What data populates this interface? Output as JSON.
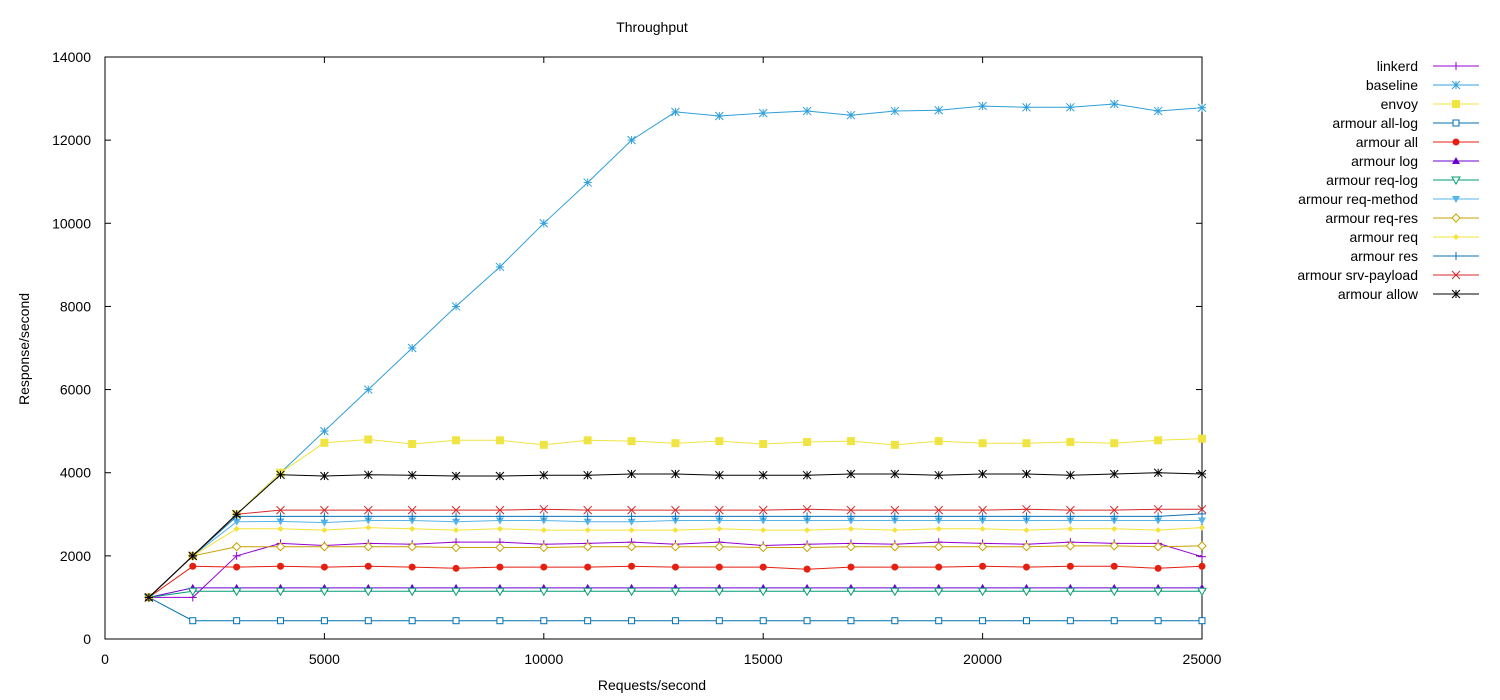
{
  "chart_data": {
    "type": "line",
    "title": "Throughput",
    "xlabel": "Requests/second",
    "ylabel": "Response/second",
    "xlim": [
      0,
      25000
    ],
    "ylim": [
      0,
      14000
    ],
    "xticks": [
      0,
      5000,
      10000,
      15000,
      20000,
      25000
    ],
    "yticks": [
      0,
      2000,
      4000,
      6000,
      8000,
      10000,
      12000,
      14000
    ],
    "grid": false,
    "legend_position": "outside-right",
    "x": [
      1000,
      2000,
      3000,
      4000,
      5000,
      6000,
      7000,
      8000,
      9000,
      10000,
      11000,
      12000,
      13000,
      14000,
      15000,
      16000,
      17000,
      18000,
      19000,
      20000,
      21000,
      22000,
      23000,
      24000,
      25000
    ],
    "series": [
      {
        "name": "linkerd",
        "color": "#9400d3",
        "marker": "plus",
        "values": [
          1000,
          1000,
          2000,
          2300,
          2250,
          2300,
          2280,
          2330,
          2330,
          2280,
          2300,
          2330,
          2280,
          2330,
          2250,
          2280,
          2300,
          2280,
          2330,
          2300,
          2280,
          2330,
          2300,
          2300,
          1980
        ]
      },
      {
        "name": "baseline",
        "color": "#2f9fd8",
        "marker": "asterisk",
        "values": [
          1000,
          2000,
          3000,
          4000,
          5000,
          6000,
          7000,
          8000,
          8950,
          10000,
          10980,
          12000,
          12680,
          12580,
          12650,
          12700,
          12600,
          12700,
          12720,
          12820,
          12790,
          12790,
          12870,
          12700,
          12780
        ]
      },
      {
        "name": "envoy",
        "color": "#f0e442",
        "marker": "square",
        "values": [
          1000,
          2000,
          3000,
          4000,
          4720,
          4800,
          4690,
          4780,
          4780,
          4670,
          4780,
          4760,
          4710,
          4760,
          4690,
          4740,
          4760,
          4670,
          4760,
          4710,
          4710,
          4740,
          4710,
          4780,
          4820
        ]
      },
      {
        "name": "armour all-log",
        "color": "#0072b2",
        "marker": "open-square",
        "values": [
          1000,
          440,
          440,
          440,
          440,
          440,
          440,
          440,
          440,
          440,
          440,
          440,
          440,
          440,
          440,
          440,
          440,
          440,
          440,
          440,
          440,
          440,
          440,
          440,
          440
        ]
      },
      {
        "name": "armour all",
        "color": "#e51e10",
        "marker": "filled-circle",
        "values": [
          1000,
          1750,
          1730,
          1750,
          1730,
          1750,
          1730,
          1700,
          1730,
          1730,
          1730,
          1750,
          1730,
          1730,
          1730,
          1680,
          1730,
          1730,
          1730,
          1750,
          1730,
          1750,
          1750,
          1700,
          1750
        ]
      },
      {
        "name": "armour log",
        "color": "#6a00d0",
        "marker": "filled-triangle-up",
        "values": [
          1000,
          1230,
          1230,
          1230,
          1230,
          1230,
          1230,
          1230,
          1230,
          1230,
          1230,
          1230,
          1230,
          1230,
          1230,
          1230,
          1230,
          1230,
          1230,
          1230,
          1230,
          1230,
          1230,
          1230,
          1230
        ]
      },
      {
        "name": "armour req-log",
        "color": "#009e73",
        "marker": "open-triangle-down",
        "values": [
          1000,
          1150,
          1150,
          1150,
          1150,
          1150,
          1150,
          1150,
          1150,
          1150,
          1150,
          1150,
          1150,
          1150,
          1150,
          1150,
          1150,
          1150,
          1150,
          1150,
          1150,
          1150,
          1150,
          1150,
          1150
        ]
      },
      {
        "name": "armour req-method",
        "color": "#56b4e9",
        "marker": "filled-triangle-down",
        "values": [
          1000,
          2000,
          2820,
          2830,
          2800,
          2850,
          2850,
          2820,
          2850,
          2850,
          2820,
          2820,
          2850,
          2850,
          2850,
          2850,
          2850,
          2850,
          2850,
          2850,
          2850,
          2850,
          2850,
          2850,
          2850
        ]
      },
      {
        "name": "armour req-res",
        "color": "#c8a000",
        "marker": "open-diamond",
        "values": [
          1000,
          2000,
          2220,
          2220,
          2220,
          2220,
          2220,
          2200,
          2200,
          2200,
          2220,
          2220,
          2220,
          2220,
          2200,
          2200,
          2220,
          2220,
          2220,
          2220,
          2220,
          2240,
          2240,
          2220,
          2240
        ]
      },
      {
        "name": "armour req",
        "color": "#f5e33a",
        "marker": "filled-diamond",
        "values": [
          1000,
          2000,
          2650,
          2650,
          2620,
          2680,
          2650,
          2620,
          2650,
          2620,
          2620,
          2620,
          2620,
          2650,
          2620,
          2620,
          2650,
          2620,
          2650,
          2650,
          2620,
          2650,
          2650,
          2620,
          2680
        ]
      },
      {
        "name": "armour res",
        "color": "#0b72b5",
        "marker": "plus",
        "values": [
          1000,
          2000,
          2950,
          2950,
          2950,
          2950,
          2950,
          2950,
          2950,
          2950,
          2950,
          2950,
          2950,
          2950,
          2950,
          2950,
          2950,
          2950,
          2950,
          2950,
          2950,
          2950,
          2950,
          2950,
          3010
        ]
      },
      {
        "name": "armour srv-payload",
        "color": "#d62728",
        "marker": "cross",
        "values": [
          1000,
          2000,
          3000,
          3100,
          3100,
          3100,
          3100,
          3100,
          3100,
          3120,
          3100,
          3100,
          3100,
          3100,
          3100,
          3120,
          3100,
          3100,
          3100,
          3100,
          3120,
          3100,
          3100,
          3120,
          3120
        ]
      },
      {
        "name": "armour allow",
        "color": "#000000",
        "marker": "asterisk",
        "values": [
          1000,
          2000,
          3000,
          3950,
          3920,
          3950,
          3940,
          3920,
          3920,
          3940,
          3940,
          3970,
          3970,
          3940,
          3940,
          3940,
          3970,
          3970,
          3940,
          3970,
          3970,
          3940,
          3970,
          4000,
          3970
        ]
      }
    ]
  }
}
